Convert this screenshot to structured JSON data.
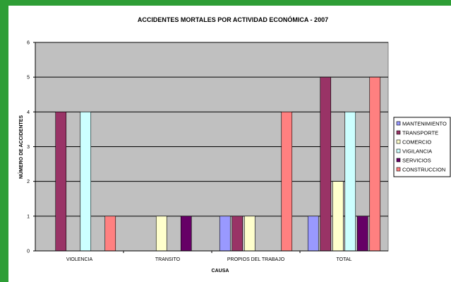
{
  "chart_data": {
    "type": "bar",
    "title": "ACCIDENTES MORTALES POR ACTIVIDAD ECONÓMICA - 2007",
    "xlabel": "CAUSA",
    "ylabel": "NÚMERO DE ACCIDENTES",
    "categories": [
      "VIOLENCIA",
      "TRANSITO",
      "PROPIOS DEL TRABAJO",
      "TOTAL"
    ],
    "ylim": [
      0,
      6
    ],
    "yticks": [
      "0",
      "1",
      "2",
      "3",
      "4",
      "5",
      "6"
    ],
    "grid": true,
    "legend_position": "right",
    "plot_background": "#c0c0c0",
    "series": [
      {
        "name": "MANTENIMIENTO",
        "color": "#9999ff",
        "values": [
          0,
          0,
          1,
          1
        ]
      },
      {
        "name": "TRANSPORTE",
        "color": "#993366",
        "values": [
          4,
          0,
          1,
          5
        ]
      },
      {
        "name": "COMERCIO",
        "color": "#ffffcc",
        "values": [
          0,
          1,
          1,
          2
        ]
      },
      {
        "name": "VIGILANCIA",
        "color": "#ccffff",
        "values": [
          4,
          0,
          0,
          4
        ]
      },
      {
        "name": "SERVICIOS",
        "color": "#660066",
        "values": [
          0,
          1,
          0,
          1
        ]
      },
      {
        "name": "CONSTRUCCION",
        "color": "#ff8080",
        "values": [
          1,
          0,
          4,
          5
        ]
      }
    ]
  }
}
